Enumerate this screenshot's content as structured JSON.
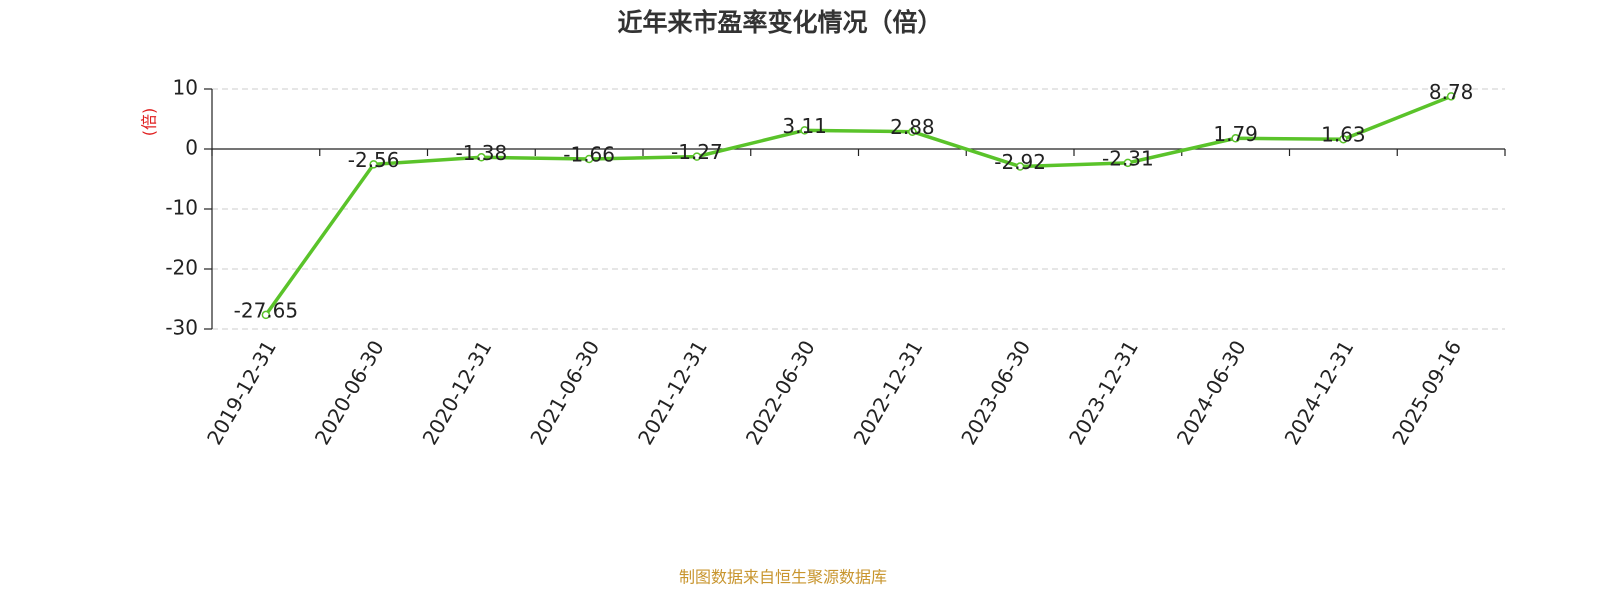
{
  "chart_data": {
    "type": "line",
    "title": "近年来市盈率变化情况（倍）",
    "y_label": "(倍)",
    "source": "制图数据来自恒生聚源数据库",
    "categories": [
      "2019-12-31",
      "2020-06-30",
      "2020-12-31",
      "2021-06-30",
      "2021-12-31",
      "2022-06-30",
      "2022-12-31",
      "2023-06-30",
      "2023-12-31",
      "2024-06-30",
      "2024-12-31",
      "2025-09-16"
    ],
    "values": [
      -27.65,
      -2.56,
      -1.38,
      -1.66,
      -1.27,
      3.11,
      2.88,
      -2.92,
      -2.31,
      1.79,
      1.63,
      8.78
    ],
    "color": "#5ac32a",
    "ylim": [
      -30,
      10
    ],
    "yticks": [
      -30,
      -20,
      -10,
      0,
      10
    ],
    "grid": true
  }
}
